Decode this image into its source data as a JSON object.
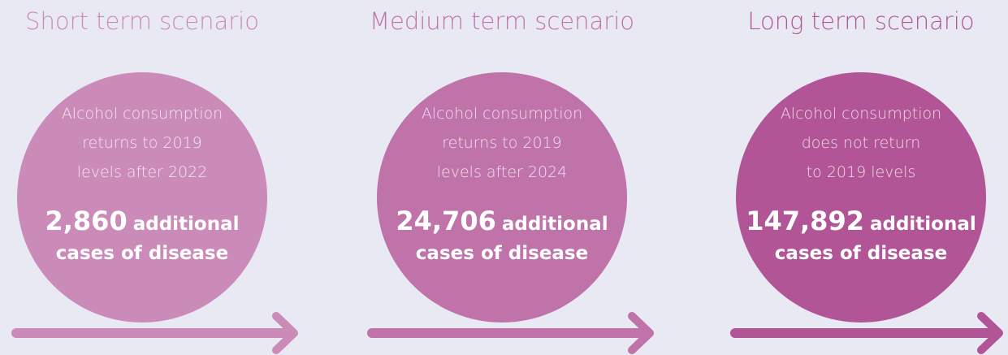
{
  "scenarios": [
    {
      "title": "Short term scenario",
      "description": [
        "Alcohol consumption",
        "returns to 2019",
        "levels after 2022"
      ],
      "count": "2,860",
      "count_suffix": "additional",
      "count_line2": "cases of disease"
    },
    {
      "title": "Medium term scenario",
      "description": [
        "Alcohol consumption",
        "returns to 2019",
        "levels after 2024"
      ],
      "count": "24,706",
      "count_suffix": "additional",
      "count_line2": "cases of disease"
    },
    {
      "title": "Long term scenario",
      "description": [
        "Alcohol consumption",
        "does not return",
        "to 2019 levels"
      ],
      "count": "147,892",
      "count_suffix": "additional",
      "count_line2": "cases of disease"
    }
  ]
}
